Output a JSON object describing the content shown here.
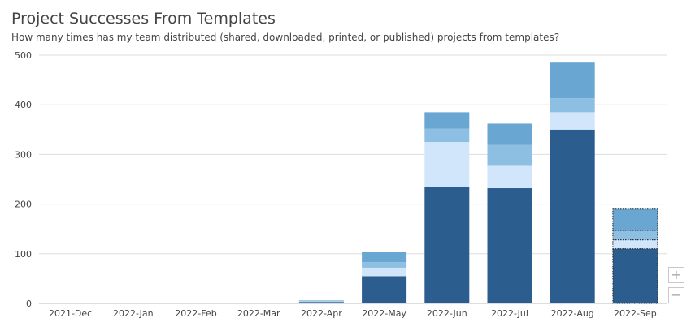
{
  "chart_data": {
    "type": "bar",
    "stacked": true,
    "title": "Project Successes From Templates",
    "subtitle": "How many times has my team distributed (shared, downloaded, printed, or published) projects from templates?",
    "categories": [
      "2021-Dec",
      "2022-Jan",
      "2022-Feb",
      "2022-Mar",
      "2022-Apr",
      "2022-May",
      "2022-Jun",
      "2022-Jul",
      "2022-Aug",
      "2022-Sep"
    ],
    "series": [
      {
        "color": "#2c5d8f",
        "values": [
          0,
          0,
          0,
          0,
          3,
          55,
          235,
          232,
          350,
          110
        ]
      },
      {
        "color": "#d2e6fb",
        "values": [
          0,
          0,
          0,
          0,
          1,
          17,
          90,
          45,
          35,
          18
        ]
      },
      {
        "color": "#8dbfe2",
        "values": [
          0,
          0,
          0,
          0,
          1,
          11,
          27,
          42,
          28,
          19
        ]
      },
      {
        "color": "#69a7d2",
        "values": [
          0,
          0,
          0,
          0,
          1,
          20,
          33,
          43,
          72,
          43
        ]
      }
    ],
    "partial_categories": [
      "2022-Sep"
    ],
    "yticks": [
      0,
      100,
      200,
      300,
      400,
      500
    ],
    "ylim": [
      0,
      500
    ],
    "xlabel": "",
    "ylabel": "",
    "grid": true
  },
  "controls": {
    "zoom_in_label": "+",
    "zoom_out_label": "−"
  }
}
